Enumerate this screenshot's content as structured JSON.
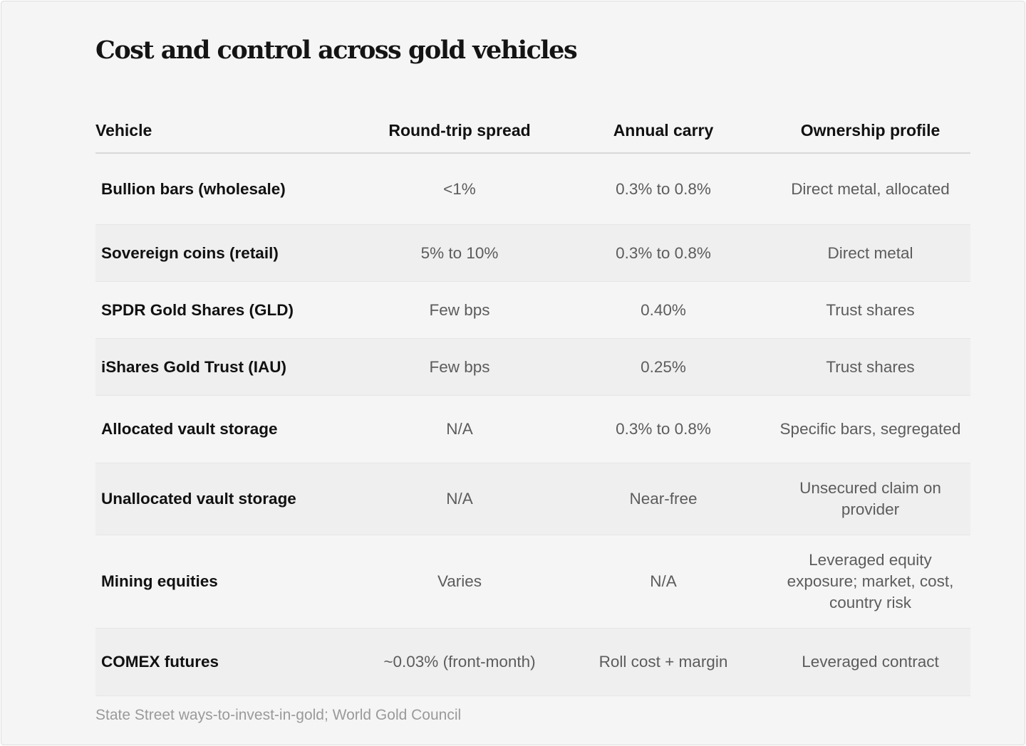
{
  "title": "Cost and control across gold vehicles",
  "columns": [
    "Vehicle",
    "Round-trip spread",
    "Annual carry",
    "Ownership profile"
  ],
  "rows": [
    {
      "vehicle": "Bullion bars (wholesale)",
      "spread": "<1%",
      "carry": "0.3% to 0.8%",
      "ownership": "Direct metal, allocated"
    },
    {
      "vehicle": "Sovereign coins (retail)",
      "spread": "5% to 10%",
      "carry": "0.3% to 0.8%",
      "ownership": "Direct metal"
    },
    {
      "vehicle": "SPDR Gold Shares (GLD)",
      "spread": "Few bps",
      "carry": "0.40%",
      "ownership": "Trust shares"
    },
    {
      "vehicle": "iShares Gold Trust (IAU)",
      "spread": "Few bps",
      "carry": "0.25%",
      "ownership": "Trust shares"
    },
    {
      "vehicle": "Allocated vault storage",
      "spread": "N/A",
      "carry": "0.3% to 0.8%",
      "ownership": "Specific bars, segregated"
    },
    {
      "vehicle": "Unallocated vault storage",
      "spread": "N/A",
      "carry": "Near-free",
      "ownership": "Unsecured claim on provider"
    },
    {
      "vehicle": "Mining equities",
      "spread": "Varies",
      "carry": "N/A",
      "ownership": "Leveraged equity exposure; market, cost, country risk"
    },
    {
      "vehicle": "COMEX futures",
      "spread": "~0.03% (front-month)",
      "carry": "Roll cost + margin",
      "ownership": "Leveraged contract"
    }
  ],
  "source": "State Street ways-to-invest-in-gold; World Gold Council"
}
